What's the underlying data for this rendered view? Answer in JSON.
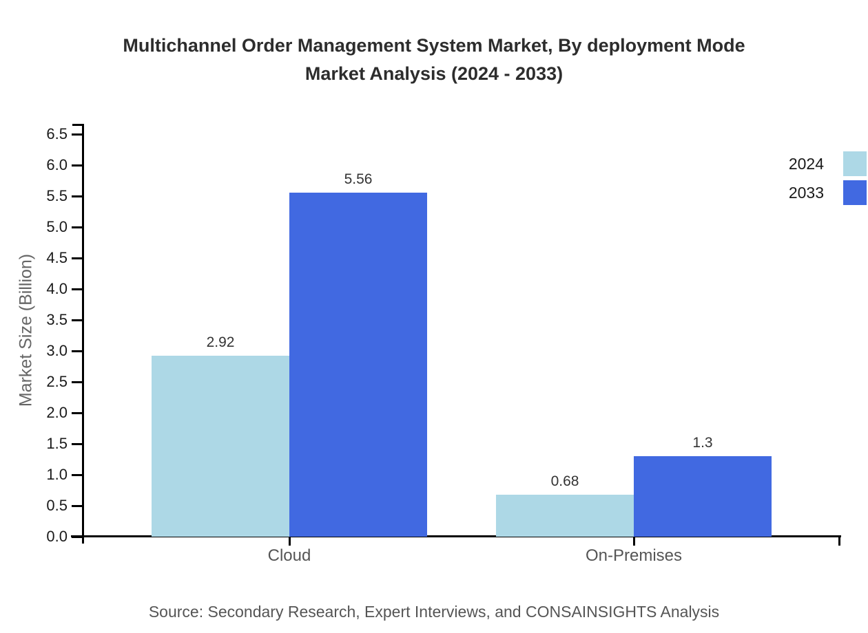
{
  "title": {
    "line1": "Multichannel Order Management System Market, By deployment Mode",
    "line2": "Market Analysis (2024 - 2033)"
  },
  "source_note": "Source: Secondary Research, Expert Interviews, and CONSAINSIGHTS Analysis",
  "colors": {
    "background": "#ffffff",
    "axis": "#000000",
    "title_text": "#2d2d2d",
    "tick_text": "#1a1a1a",
    "category_text": "#555555",
    "value_text": "#333333",
    "y_axis_title_text": "#666666",
    "source_text": "#555555",
    "series_2024": "#ADD8E6",
    "series_2033": "#4169E1"
  },
  "chart_data": {
    "type": "bar",
    "title": "Multichannel Order Management System Market, By deployment Mode Market Analysis (2024 - 2033)",
    "xlabel": "",
    "ylabel": "Market Size (Billion)",
    "categories": [
      "Cloud",
      "On-Premises"
    ],
    "series": [
      {
        "name": "2024",
        "color": "#ADD8E6",
        "values": [
          2.92,
          0.68
        ],
        "value_labels": [
          "2.92",
          "0.68"
        ]
      },
      {
        "name": "2033",
        "color": "#4169E1",
        "values": [
          5.56,
          1.3
        ],
        "value_labels": [
          "5.56",
          "1.3"
        ]
      }
    ],
    "ylim": [
      0,
      6.5
    ],
    "ytick_step": 0.5,
    "ytick_labels": [
      "0.0",
      "0.5",
      "1.0",
      "1.5",
      "2.0",
      "2.5",
      "3.0",
      "3.5",
      "4.0",
      "4.5",
      "5.0",
      "5.5",
      "6.0",
      "6.5"
    ],
    "grid": false,
    "legend_position": "top-right"
  }
}
